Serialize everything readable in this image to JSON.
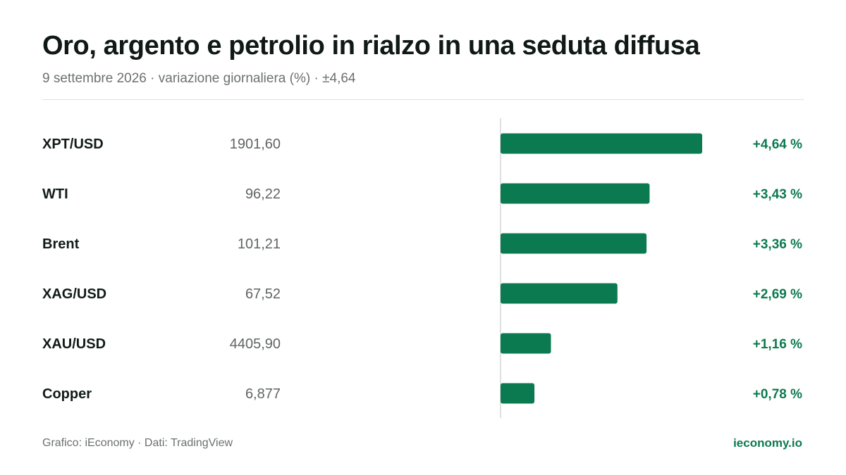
{
  "header": {
    "title": "Oro, argento e petrolio in rialzo in una seduta diffusa",
    "subtitle": "9 settembre 2026 · variazione giornaliera (%) · ±4,64"
  },
  "footer": {
    "source": "Grafico: iEconomy · Dati: TradingView",
    "brand": "ieconomy.io"
  },
  "colors": {
    "positive": "#0c7a50",
    "text": "#111c17",
    "muted": "#5f6562"
  },
  "chart_data": {
    "type": "bar",
    "orientation": "horizontal",
    "categories": [
      "XPT/USD",
      "WTI",
      "Brent",
      "XAG/USD",
      "XAU/USD",
      "Copper"
    ],
    "prices": [
      "1901,60",
      "96,22",
      "101,21",
      "67,52",
      "4405,90",
      "6,877"
    ],
    "values": [
      4.64,
      3.43,
      3.36,
      2.69,
      1.16,
      0.78
    ],
    "value_labels": [
      "+4,64 %",
      "+3,43 %",
      "+3,36 %",
      "+2,69 %",
      "+1,16 %",
      "+0,78 %"
    ],
    "xlim": [
      -4.64,
      4.64
    ],
    "grid": false,
    "legend": "none"
  }
}
